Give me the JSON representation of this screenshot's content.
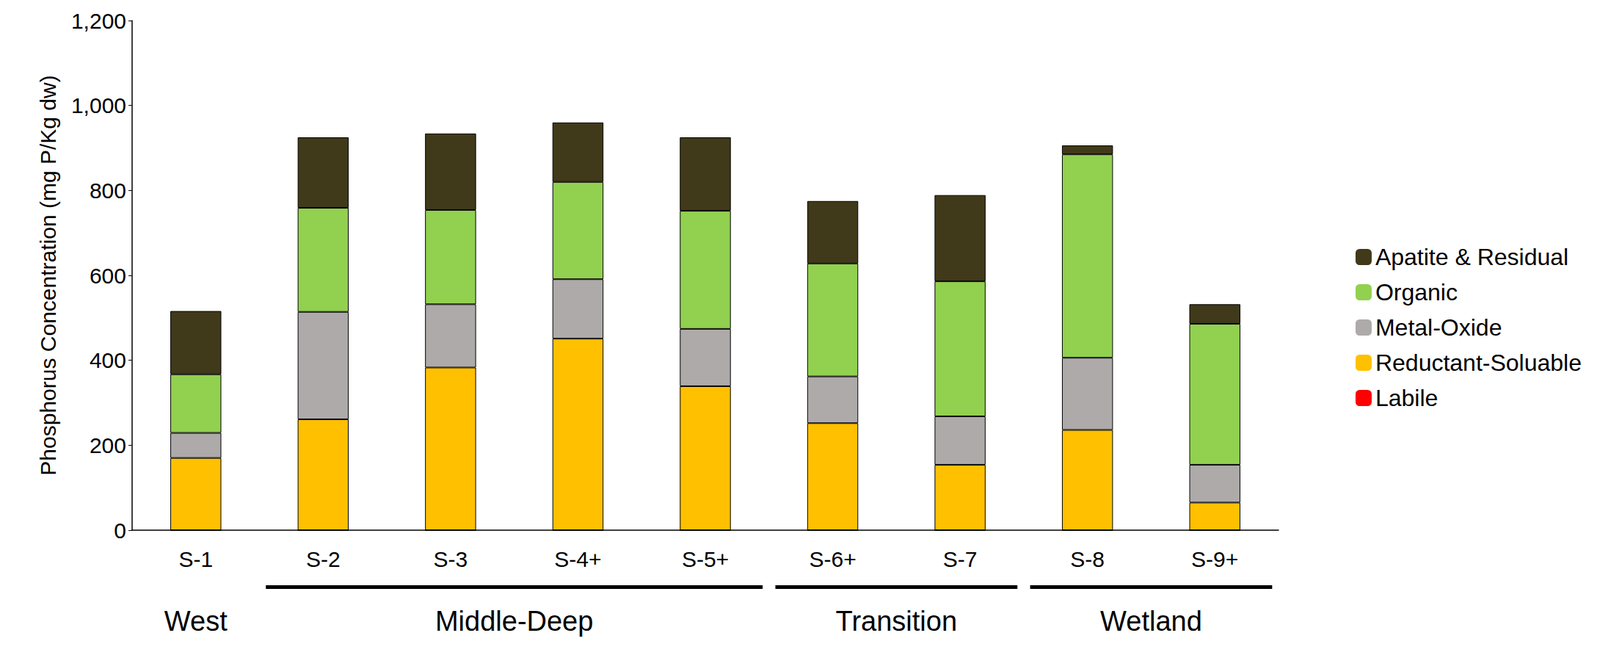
{
  "chart_data": {
    "type": "bar",
    "stacked": true,
    "y_label": "Phosphorus Concentration (mg P/Kg dw)",
    "categories": [
      "S-1",
      "S-2",
      "S-3",
      "S-4+",
      "S-5+",
      "S-6+",
      "S-7",
      "S-8",
      "S-9+"
    ],
    "series": [
      {
        "name": "Labile",
        "color": "#ff0000",
        "values": [
          0,
          0,
          0,
          0,
          0,
          0,
          0,
          0,
          0
        ]
      },
      {
        "name": "Reductant-Soluable",
        "color": "#ffc000",
        "values": [
          170,
          261,
          383,
          451,
          339,
          252,
          154,
          236,
          65
        ]
      },
      {
        "name": "Metal-Oxide",
        "color": "#aeaaaa",
        "values": [
          59,
          253,
          149,
          140,
          135,
          110,
          114,
          170,
          89
        ]
      },
      {
        "name": "Organic",
        "color": "#92d050",
        "values": [
          138,
          245,
          222,
          229,
          278,
          266,
          318,
          479,
          332
        ]
      },
      {
        "name": "Apatite & Residual",
        "color": "#403a1a",
        "values": [
          149,
          166,
          180,
          140,
          173,
          147,
          203,
          21,
          46
        ]
      }
    ],
    "ylim": [
      0,
      1200
    ],
    "yticks": [
      0,
      200,
      400,
      600,
      800,
      1000,
      1200
    ],
    "grid": false,
    "legend": "right",
    "annotations": [
      {
        "text": "West",
        "span": [
          "S-1",
          "S-1"
        ]
      },
      {
        "text": "Middle-Deep",
        "span": [
          "S-2",
          "S-5+"
        ]
      },
      {
        "text": "Transition",
        "span": [
          "S-6+",
          "S-7"
        ]
      },
      {
        "text": "Wetland",
        "span": [
          "S-8",
          "S-9+"
        ]
      }
    ]
  }
}
